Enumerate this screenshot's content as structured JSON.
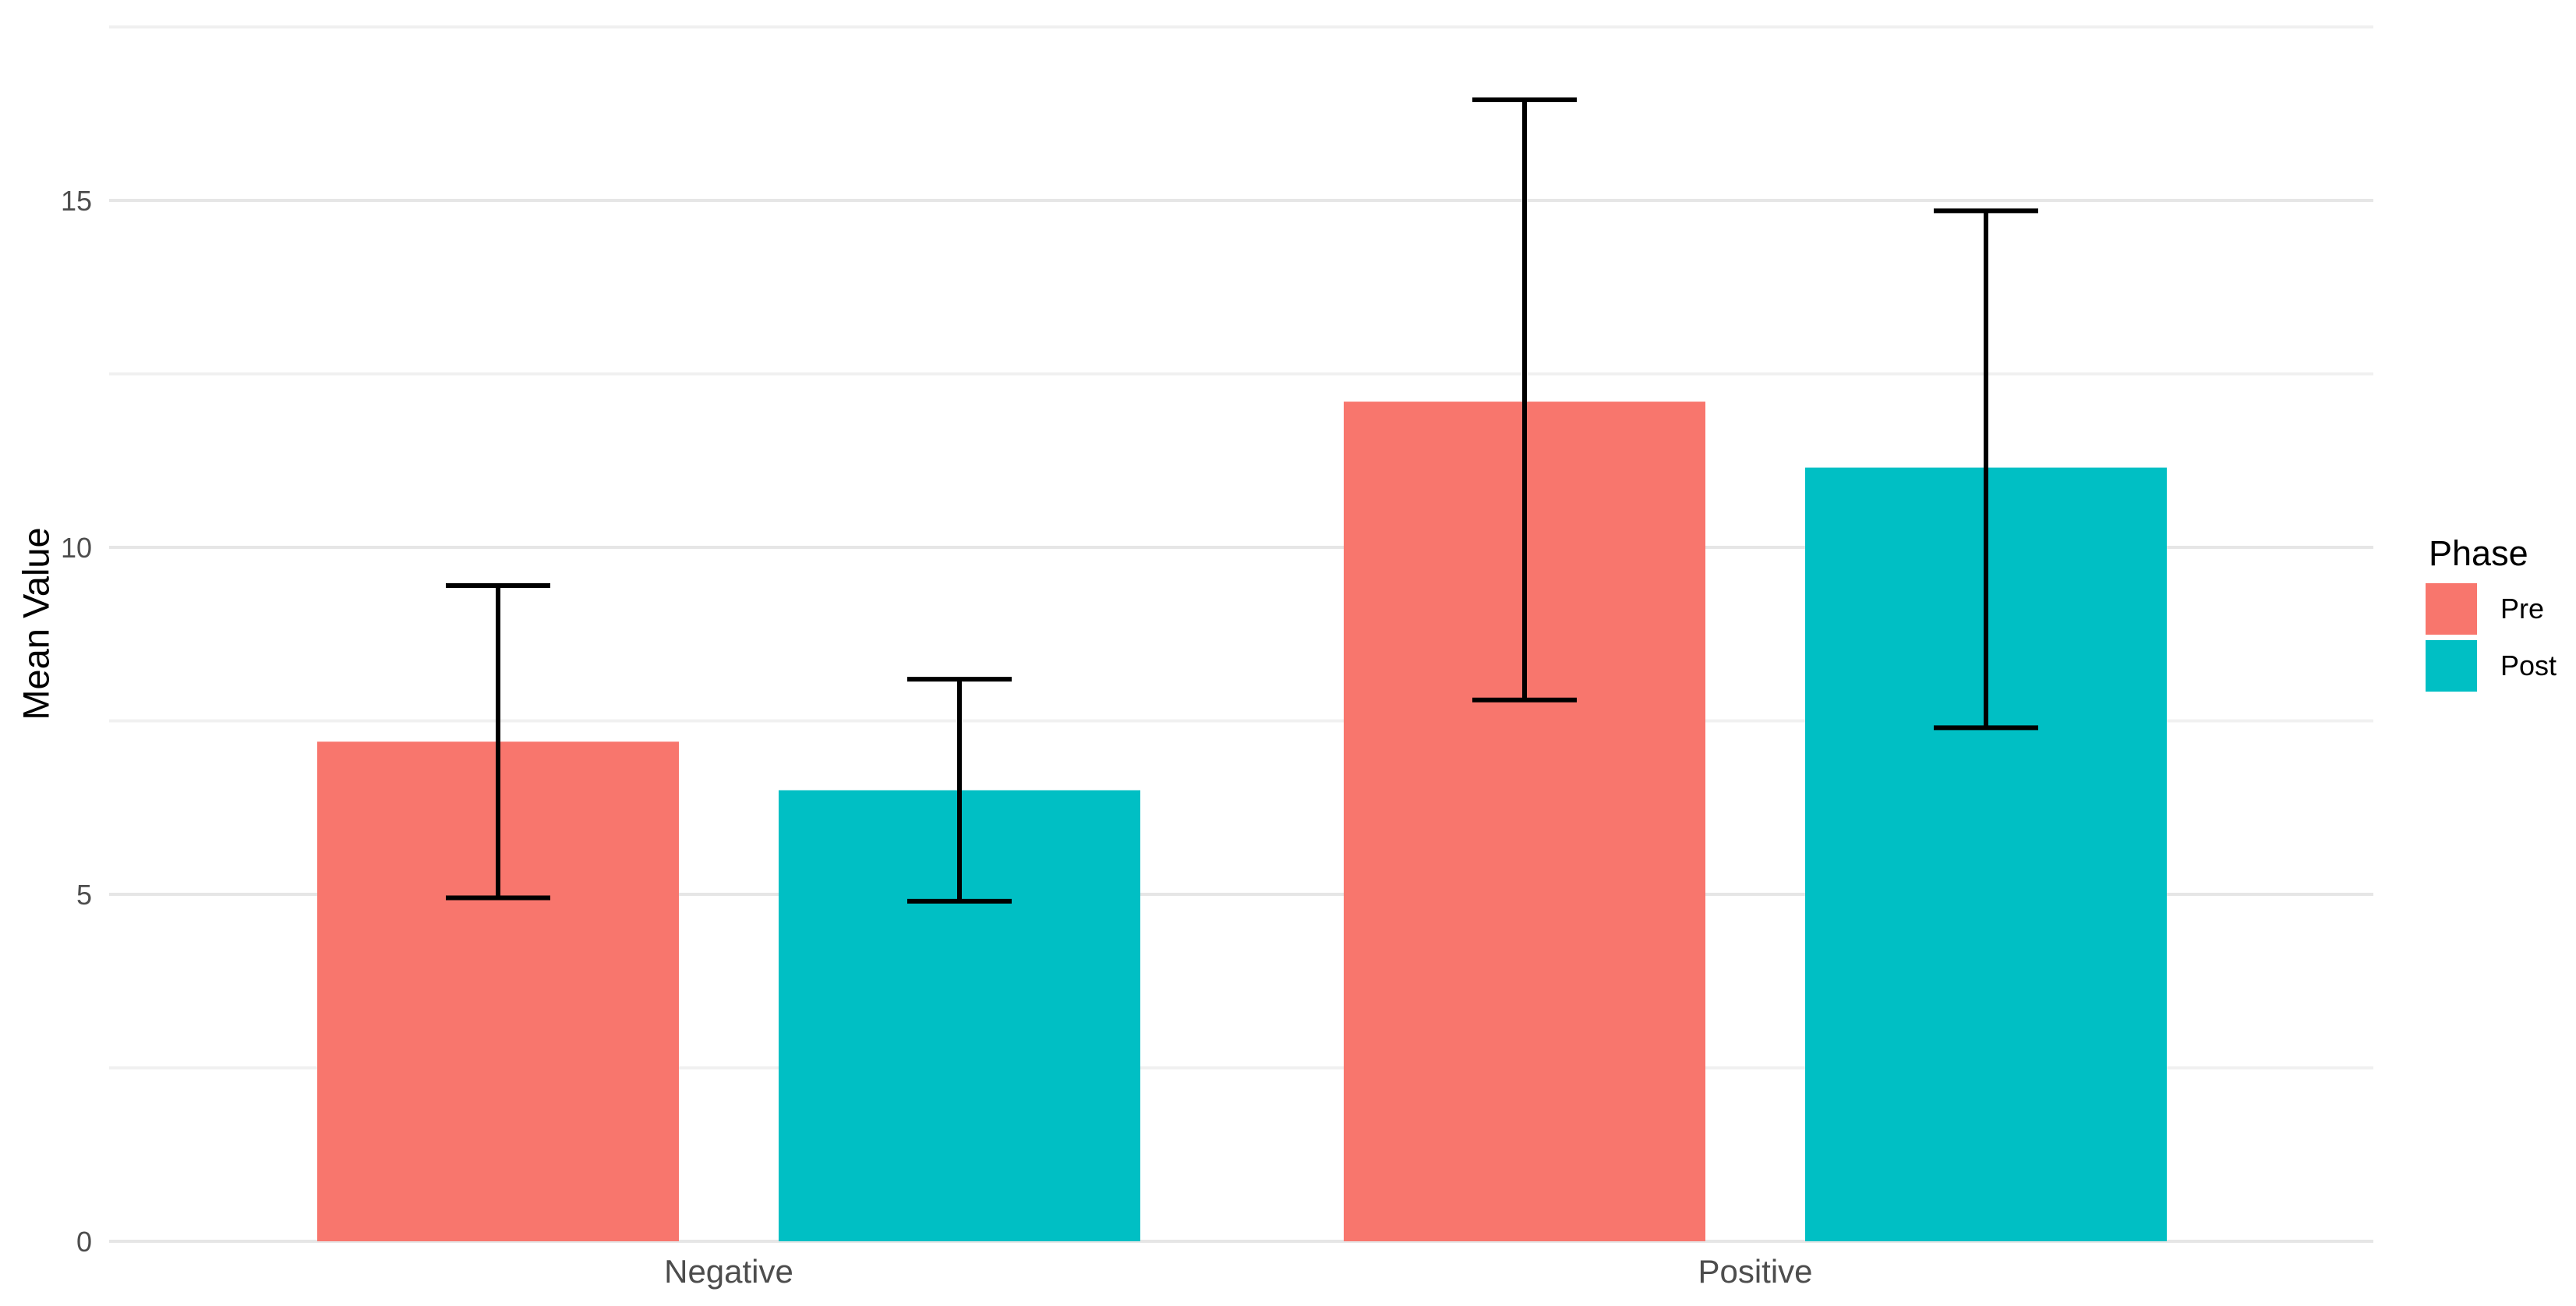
{
  "figure": {
    "background": "#FFFFFF"
  },
  "chart_data": {
    "type": "bar",
    "title": "",
    "xlabel": "",
    "ylabel": "Mean Value",
    "categories": [
      "Negative",
      "Positive"
    ],
    "series": [
      {
        "name": "Pre",
        "color": "#F8766D",
        "values": [
          7.2,
          12.1
        ],
        "error_low": [
          4.95,
          7.8
        ],
        "error_high": [
          9.45,
          16.45
        ]
      },
      {
        "name": "Post",
        "color": "#00BFC4",
        "values": [
          6.5,
          11.15
        ],
        "error_low": [
          4.9,
          7.4
        ],
        "error_high": [
          8.1,
          14.85
        ]
      }
    ],
    "yticks": [
      0,
      5,
      10,
      15
    ],
    "ytick_labels": [
      "0",
      "5",
      "10",
      "15"
    ],
    "minor_gridlines": [
      2.5,
      7.5,
      12.5,
      17.5
    ],
    "ylim": [
      0,
      17.9
    ],
    "grid": true,
    "error_bars": true,
    "legend": {
      "title": "Phase",
      "position": "right",
      "entries": [
        {
          "label": "Pre",
          "color": "#F8766D"
        },
        {
          "label": "Post",
          "color": "#00BFC4"
        }
      ]
    },
    "colors": {
      "grid_major": "#E6E6E6",
      "grid_minor": "#F0F0F0",
      "axis_text": "#4D4D4D",
      "errorbar": "#000000",
      "background": "#FFFFFF"
    }
  }
}
